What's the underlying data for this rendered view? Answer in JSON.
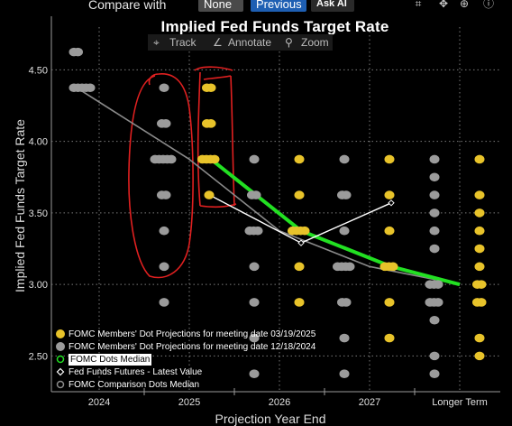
{
  "toolbar": {
    "compare_label": "Compare with",
    "none_label": "None",
    "previous_label": "Previous",
    "ask_ai_label": "Ask AI"
  },
  "tools": {
    "track": "Track",
    "annotate": "Annotate",
    "zoom": "Zoom"
  },
  "colors": {
    "current_dots": "#e8c32a",
    "previous_dots": "#9b9b9b",
    "median": "#22e022",
    "futures": "#ffffff",
    "comparison_median": "#8a8a8a",
    "markup": "#e02020"
  },
  "chart_data": {
    "type": "scatter",
    "title": "Implied Fed Funds Target Rate",
    "xlabel": "Projection Year End",
    "ylabel": "Implied Fed Funds Target Rate",
    "categories": [
      "2024",
      "2025",
      "2026",
      "2027",
      "Longer Term"
    ],
    "ylim": [
      2.25,
      4.875
    ],
    "yticks": [
      "2.50",
      "3.00",
      "3.50",
      "4.00",
      "4.50"
    ],
    "grid": true,
    "legend": {
      "position": "bottom-left",
      "entries": [
        "FOMC Members' Dot Projections for meeting date 03/19/2025",
        "FOMC Members' Dot Projections for meeting date 12/18/2024",
        "FOMC Dots Median",
        "Fed Funds Futures - Latest Value",
        "FOMC Comparison Dots Median"
      ]
    },
    "series": [
      {
        "name": "FOMC Members' Dot Projections for meeting date 03/19/2025",
        "kind": "dots",
        "points": [
          {
            "x": "2025",
            "y": 4.375,
            "count": 2
          },
          {
            "x": "2025",
            "y": 4.125,
            "count": 2
          },
          {
            "x": "2025",
            "y": 3.875,
            "count": 4
          },
          {
            "x": "2025",
            "y": 3.625,
            "count": 1
          },
          {
            "x": "2026",
            "y": 3.875,
            "count": 1
          },
          {
            "x": "2026",
            "y": 3.625,
            "count": 1
          },
          {
            "x": "2026",
            "y": 3.375,
            "count": 4
          },
          {
            "x": "2026",
            "y": 3.125,
            "count": 1
          },
          {
            "x": "2026",
            "y": 2.875,
            "count": 1
          },
          {
            "x": "2027",
            "y": 3.875,
            "count": 1
          },
          {
            "x": "2027",
            "y": 3.625,
            "count": 1
          },
          {
            "x": "2027",
            "y": 3.375,
            "count": 1
          },
          {
            "x": "2027",
            "y": 3.125,
            "count": 3
          },
          {
            "x": "2027",
            "y": 2.875,
            "count": 1
          },
          {
            "x": "2027",
            "y": 2.625,
            "count": 1
          },
          {
            "x": "Longer Term",
            "y": 3.875,
            "count": 1
          },
          {
            "x": "Longer Term",
            "y": 3.625,
            "count": 1
          },
          {
            "x": "Longer Term",
            "y": 3.5,
            "count": 1
          },
          {
            "x": "Longer Term",
            "y": 3.375,
            "count": 1
          },
          {
            "x": "Longer Term",
            "y": 3.25,
            "count": 1
          },
          {
            "x": "Longer Term",
            "y": 3.125,
            "count": 1
          },
          {
            "x": "Longer Term",
            "y": 3.0,
            "count": 2
          },
          {
            "x": "Longer Term",
            "y": 2.875,
            "count": 2
          },
          {
            "x": "Longer Term",
            "y": 2.625,
            "count": 1
          },
          {
            "x": "Longer Term",
            "y": 2.5,
            "count": 1
          }
        ]
      },
      {
        "name": "FOMC Members' Dot Projections for meeting date 12/18/2024",
        "kind": "dots",
        "points": [
          {
            "x": "2024",
            "y": 4.625,
            "count": 2
          },
          {
            "x": "2024",
            "y": 4.375,
            "count": 5
          },
          {
            "x": "2025",
            "y": 4.375,
            "count": 1
          },
          {
            "x": "2025",
            "y": 4.125,
            "count": 2
          },
          {
            "x": "2025",
            "y": 3.875,
            "count": 5
          },
          {
            "x": "2025",
            "y": 3.625,
            "count": 2
          },
          {
            "x": "2025",
            "y": 3.375,
            "count": 1
          },
          {
            "x": "2025",
            "y": 3.125,
            "count": 1
          },
          {
            "x": "2025",
            "y": 2.875,
            "count": 1
          },
          {
            "x": "2026",
            "y": 3.875,
            "count": 1
          },
          {
            "x": "2026",
            "y": 3.625,
            "count": 2
          },
          {
            "x": "2026",
            "y": 3.375,
            "count": 3
          },
          {
            "x": "2026",
            "y": 3.125,
            "count": 1
          },
          {
            "x": "2026",
            "y": 2.875,
            "count": 1
          },
          {
            "x": "2026",
            "y": 2.625,
            "count": 1
          },
          {
            "x": "2026",
            "y": 2.375,
            "count": 1
          },
          {
            "x": "2027",
            "y": 3.875,
            "count": 1
          },
          {
            "x": "2027",
            "y": 3.625,
            "count": 2
          },
          {
            "x": "2027",
            "y": 3.375,
            "count": 1
          },
          {
            "x": "2027",
            "y": 3.125,
            "count": 4
          },
          {
            "x": "2027",
            "y": 2.875,
            "count": 2
          },
          {
            "x": "2027",
            "y": 2.625,
            "count": 1
          },
          {
            "x": "2027",
            "y": 2.375,
            "count": 1
          },
          {
            "x": "Longer Term",
            "y": 3.875,
            "count": 1
          },
          {
            "x": "Longer Term",
            "y": 3.75,
            "count": 1
          },
          {
            "x": "Longer Term",
            "y": 3.625,
            "count": 1
          },
          {
            "x": "Longer Term",
            "y": 3.5,
            "count": 1
          },
          {
            "x": "Longer Term",
            "y": 3.375,
            "count": 1
          },
          {
            "x": "Longer Term",
            "y": 3.25,
            "count": 1
          },
          {
            "x": "Longer Term",
            "y": 3.0,
            "count": 3
          },
          {
            "x": "Longer Term",
            "y": 2.875,
            "count": 3
          },
          {
            "x": "Longer Term",
            "y": 2.75,
            "count": 1
          },
          {
            "x": "Longer Term",
            "y": 2.5,
            "count": 1
          },
          {
            "x": "Longer Term",
            "y": 2.375,
            "count": 1
          }
        ]
      },
      {
        "name": "FOMC Dots Median",
        "kind": "line",
        "x": [
          "2025",
          "2026",
          "2027",
          "Longer Term"
        ],
        "y": [
          3.875,
          3.375,
          3.125,
          3.0
        ]
      },
      {
        "name": "Fed Funds Futures - Latest Value",
        "kind": "line",
        "x": [
          "2025",
          "2026",
          "2027"
        ],
        "y": [
          3.62,
          3.29,
          3.57
        ]
      },
      {
        "name": "FOMC Comparison Dots Median",
        "kind": "line",
        "x": [
          "2024",
          "2025",
          "2026",
          "2027",
          "Longer Term"
        ],
        "y": [
          4.375,
          3.875,
          3.375,
          3.125,
          3.0
        ]
      }
    ]
  }
}
